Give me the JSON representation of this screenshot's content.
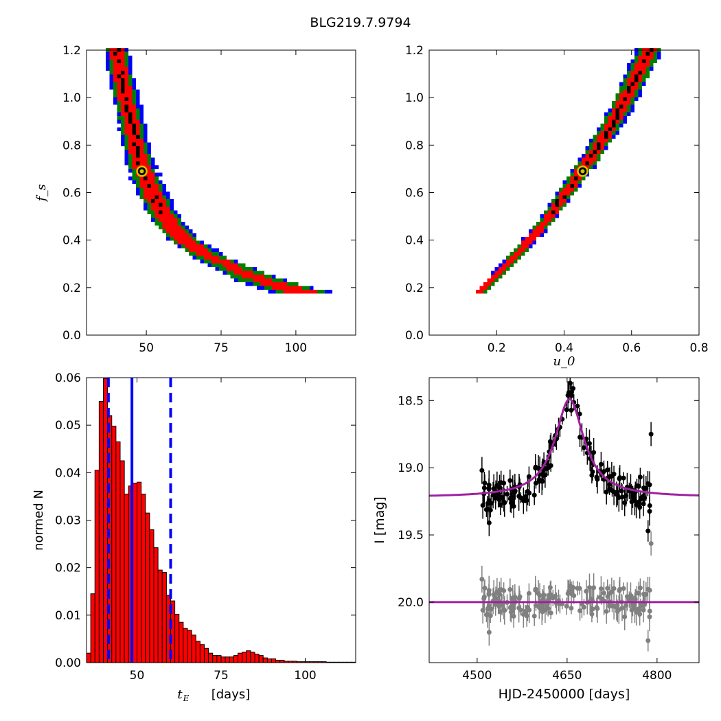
{
  "title": "BLG219.7.9794",
  "chart_data": [
    {
      "id": "fs_vs_tE",
      "type": "heatmap",
      "xlabel": "",
      "ylabel": "f_s",
      "xlim": [
        30,
        120
      ],
      "ylim": [
        0.0,
        1.2
      ],
      "xticks": [
        50,
        75,
        100
      ],
      "yticks": [
        0.0,
        0.2,
        0.4,
        0.6,
        0.8,
        1.0,
        1.2
      ],
      "colors": {
        "outer": "#0000ff",
        "middle": "#008000",
        "inner": "#ff0000",
        "core": "#000000"
      },
      "best_fit": {
        "x": 48.5,
        "y": 0.69
      },
      "band": [
        {
          "f": 0.17,
          "x": 103,
          "halfwidth": [
            10,
            8,
            5
          ]
        },
        {
          "f": 0.22,
          "x": 89,
          "halfwidth": [
            8,
            6.5,
            3
          ]
        },
        {
          "f": 0.27,
          "x": 80,
          "halfwidth": [
            6,
            5,
            1.8
          ]
        },
        {
          "f": 0.33,
          "x": 70,
          "halfwidth": [
            5,
            4.2,
            2.2
          ]
        },
        {
          "f": 0.4,
          "x": 62,
          "halfwidth": [
            4.5,
            3.8,
            2.4
          ]
        },
        {
          "f": 0.5,
          "x": 55.5,
          "halfwidth": [
            4.5,
            3.6,
            2.3
          ]
        },
        {
          "f": 0.6,
          "x": 51.5,
          "halfwidth": [
            4.5,
            3.4,
            2.1
          ]
        },
        {
          "f": 0.7,
          "x": 48.5,
          "halfwidth": [
            4.2,
            3.2,
            2.0
          ]
        },
        {
          "f": 0.8,
          "x": 46.5,
          "halfwidth": [
            4.0,
            3.0,
            1.9
          ]
        },
        {
          "f": 0.9,
          "x": 44.5,
          "halfwidth": [
            3.8,
            2.8,
            1.8
          ]
        },
        {
          "f": 1.0,
          "x": 43.0,
          "halfwidth": [
            3.6,
            2.6,
            1.7
          ]
        },
        {
          "f": 1.1,
          "x": 41.5,
          "halfwidth": [
            3.4,
            2.5,
            1.6
          ]
        },
        {
          "f": 1.2,
          "x": 40.0,
          "halfwidth": [
            3.2,
            2.4,
            1.5
          ]
        }
      ]
    },
    {
      "id": "fs_vs_u0",
      "type": "heatmap",
      "xlabel": "u_0",
      "ylabel": "",
      "xlim": [
        0.0,
        0.8
      ],
      "ylim": [
        0.0,
        1.2
      ],
      "xticks": [
        0.2,
        0.4,
        0.6,
        0.8
      ],
      "yticks": [
        0.0,
        0.2,
        0.4,
        0.6,
        0.8,
        1.0,
        1.2
      ],
      "colors": {
        "outer": "#0000ff",
        "middle": "#008000",
        "inner": "#ff0000",
        "core": "#000000"
      },
      "best_fit": {
        "x": 0.455,
        "y": 0.69
      },
      "band": [
        {
          "f": 0.17,
          "x": 0.15,
          "halfwidth": [
            0.012,
            0.009,
            0.005
          ]
        },
        {
          "f": 0.3,
          "x": 0.24,
          "halfwidth": [
            0.016,
            0.012,
            0.007
          ]
        },
        {
          "f": 0.45,
          "x": 0.335,
          "halfwidth": [
            0.018,
            0.014,
            0.008
          ]
        },
        {
          "f": 0.6,
          "x": 0.41,
          "halfwidth": [
            0.022,
            0.017,
            0.01
          ]
        },
        {
          "f": 0.75,
          "x": 0.485,
          "halfwidth": [
            0.026,
            0.02,
            0.012
          ]
        },
        {
          "f": 0.9,
          "x": 0.55,
          "halfwidth": [
            0.03,
            0.023,
            0.013
          ]
        },
        {
          "f": 1.05,
          "x": 0.605,
          "halfwidth": [
            0.032,
            0.025,
            0.014
          ]
        },
        {
          "f": 1.2,
          "x": 0.655,
          "halfwidth": [
            0.034,
            0.026,
            0.015
          ]
        }
      ]
    },
    {
      "id": "tE_histogram",
      "type": "bar",
      "xlabel": "t_E [days]",
      "ylabel": "normed N",
      "xlim": [
        35,
        115
      ],
      "ylim": [
        0.0,
        0.06
      ],
      "xticks": [
        50,
        75,
        100
      ],
      "yticks": [
        0.0,
        0.01,
        0.02,
        0.03,
        0.04,
        0.05,
        0.06
      ],
      "bar_color": "#ff0000",
      "bin_start": 35,
      "bin_width": 1.25,
      "values": [
        0.002,
        0.0145,
        0.0405,
        0.055,
        0.0598,
        0.052,
        0.0498,
        0.0465,
        0.0425,
        0.0355,
        0.0372,
        0.0378,
        0.038,
        0.0355,
        0.0315,
        0.028,
        0.0242,
        0.0195,
        0.019,
        0.0142,
        0.013,
        0.0102,
        0.0085,
        0.0072,
        0.0068,
        0.0058,
        0.0045,
        0.0038,
        0.003,
        0.002,
        0.0015,
        0.0015,
        0.0012,
        0.0012,
        0.0012,
        0.0015,
        0.002,
        0.0022,
        0.0025,
        0.0022,
        0.0018,
        0.0015,
        0.001,
        0.0008,
        0.0008,
        0.0005,
        0.0005,
        0.0003,
        0.0003,
        0.0003,
        0.0002,
        0.0002,
        0.0002,
        0.0002,
        0.0002,
        0.0002,
        0.0002,
        0.0001,
        0.0001,
        0.0001,
        0.0001,
        0.0001,
        0.0001,
        0.0001
      ],
      "vlines": [
        {
          "x": 41.5,
          "style": "dashed",
          "color": "#0000ff"
        },
        {
          "x": 48.5,
          "style": "solid",
          "color": "#0000ff"
        },
        {
          "x": 60.0,
          "style": "dashed",
          "color": "#0000ff"
        }
      ]
    },
    {
      "id": "light_curve",
      "type": "scatter",
      "xlabel": "HJD-2450000 [days]",
      "ylabel": "I [mag]",
      "xlim": [
        4420,
        4870
      ],
      "ylim": [
        20.45,
        18.33
      ],
      "xticks": [
        4500,
        4650,
        4800
      ],
      "yticks": [
        18.5,
        19.0,
        19.5,
        20.0
      ],
      "ytick_labels": [
        "18.5",
        "19.0",
        "19.5",
        "20.0"
      ],
      "model": {
        "baseline": 19.22,
        "peak_mag": 18.49,
        "t0": 4654,
        "width": 25,
        "color": "#a020a0"
      },
      "residual_baseline": 20.0,
      "data_series": {
        "name": "",
        "color": "#000000",
        "t_range": [
          4508,
          4790
        ],
        "n": 150
      },
      "outliers": [
        {
          "t": 4508,
          "mag": 19.02,
          "err": 0.1
        },
        {
          "t": 4512,
          "mag": 19.15,
          "err": 0.12
        },
        {
          "t": 4520,
          "mag": 19.41,
          "err": 0.1
        },
        {
          "t": 4734,
          "mag": 19.2,
          "err": 0.08
        },
        {
          "t": 4746,
          "mag": 19.26,
          "err": 0.1
        },
        {
          "t": 4772,
          "mag": 19.07,
          "err": 0.07
        },
        {
          "t": 4785,
          "mag": 19.47,
          "err": 0.08
        },
        {
          "t": 4790,
          "mag": 18.75,
          "err": 0.09
        },
        {
          "t": 4660,
          "mag": 18.41,
          "err": 0.05
        },
        {
          "t": 4655,
          "mag": 18.37,
          "err": 0.05
        }
      ],
      "residual_series": {
        "name": "",
        "color": "#808080"
      }
    }
  ]
}
